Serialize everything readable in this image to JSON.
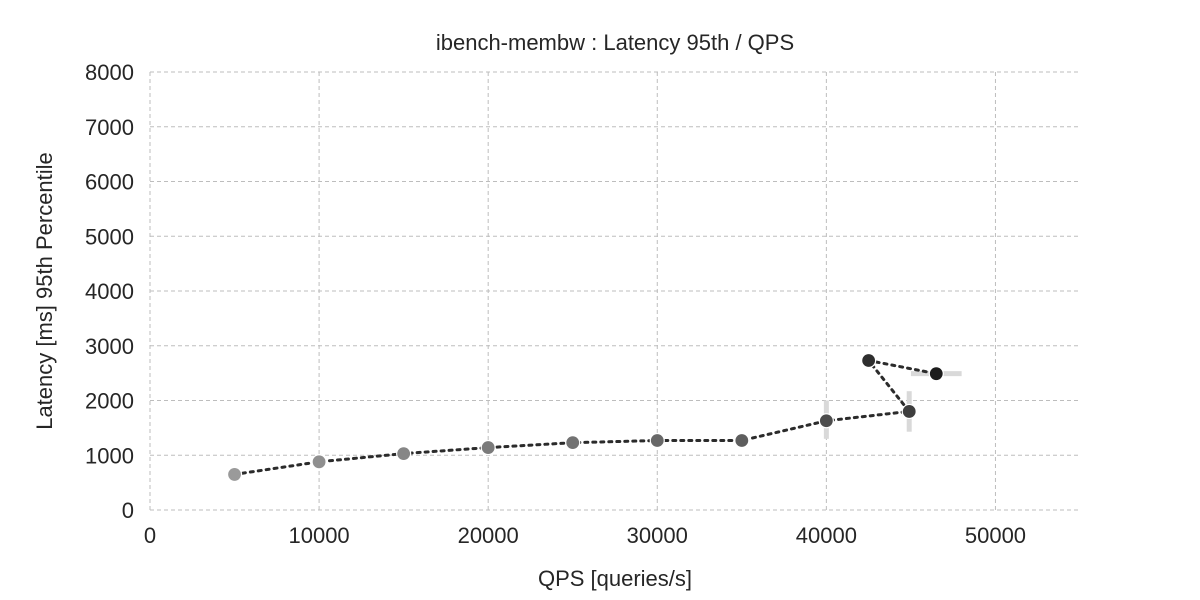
{
  "chart_data": {
    "type": "line",
    "title": "ibench-membw : Latency 95th / QPS",
    "xlabel": "QPS [queries/s]",
    "ylabel": "Latency [ms] 95th Percentile",
    "xlim": [
      0,
      55000
    ],
    "ylim": [
      0,
      8000
    ],
    "xticks": [
      0,
      10000,
      20000,
      30000,
      40000,
      50000
    ],
    "yticks": [
      0,
      1000,
      2000,
      3000,
      4000,
      5000,
      6000,
      7000,
      8000
    ],
    "grid": true,
    "series": [
      {
        "points": [
          {
            "x": 5000,
            "y": 650,
            "color": "#9a9a9a"
          },
          {
            "x": 10000,
            "y": 880,
            "color": "#8f8f8f"
          },
          {
            "x": 15000,
            "y": 1030,
            "color": "#868686"
          },
          {
            "x": 20000,
            "y": 1140,
            "color": "#7b7b7b"
          },
          {
            "x": 25000,
            "y": 1230,
            "color": "#727272"
          },
          {
            "x": 30000,
            "y": 1270,
            "color": "#686868"
          },
          {
            "x": 35000,
            "y": 1270,
            "color": "#5e5e5e"
          },
          {
            "x": 40000,
            "y": 1630,
            "color": "#4c4c4c",
            "yerr": [
              1300,
              2000
            ]
          },
          {
            "x": 44900,
            "y": 1800,
            "color": "#3e3e3e",
            "yerr": [
              1430,
              2170
            ]
          },
          {
            "x": 42500,
            "y": 2730,
            "color": "#2e2e2e"
          },
          {
            "x": 46500,
            "y": 2490,
            "color": "#1c1c1c",
            "xerr": [
              45000,
              48000
            ]
          }
        ]
      }
    ]
  }
}
